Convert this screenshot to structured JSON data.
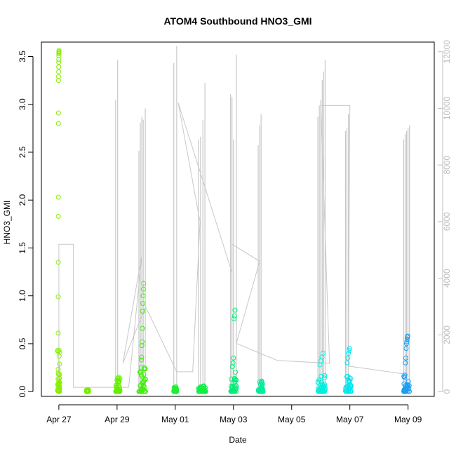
{
  "chart_data": {
    "type": "scatter",
    "title": "ATOM4 Southbound HNO3_GMI",
    "xlabel": "Date",
    "ylabel": "HNO3_GMI",
    "x_ticks": [
      "Apr 27",
      "Apr 29",
      "May 01",
      "May 03",
      "May 05",
      "May 07",
      "May 09"
    ],
    "x_range_days": [
      -0.6,
      12.9
    ],
    "ylim": [
      -0.05,
      3.65
    ],
    "y_ticks": [
      0.0,
      0.5,
      1.0,
      1.5,
      2.0,
      2.5,
      3.0,
      3.5
    ],
    "y_tick_labels": [
      "0.0",
      "0.5",
      "1.0",
      "1.5",
      "2.0",
      "2.5",
      "3.0",
      "3.5"
    ],
    "y2lim": [
      -170,
      12340
    ],
    "y2_ticks": [
      0,
      2000,
      4000,
      6000,
      8000,
      10000,
      12000
    ],
    "y2_tick_labels": [
      "0",
      "2000",
      "4000",
      "6000",
      "8000",
      "10000",
      "12000"
    ],
    "grid": false,
    "colors": {
      "altitude_line": "#c8c8c8",
      "palette": [
        "#88ee00",
        "#55ee00",
        "#22ee33",
        "#00ee66",
        "#00ee99",
        "#00eecc",
        "#00eeee",
        "#00ccee",
        "#0099ee"
      ]
    },
    "flights": [
      {
        "t": [
          -0.05,
          0.03
        ],
        "color": "#88ee00",
        "y_min": 0.0,
        "y_max": 3.56,
        "spikes": [
          0.13,
          0.42,
          0.61,
          0.99,
          1.35,
          1.83,
          2.03,
          2.8,
          2.91,
          3.25,
          3.29,
          3.34,
          3.39,
          3.44,
          3.47,
          3.51,
          3.53,
          3.54,
          3.55,
          3.56
        ]
      },
      {
        "t": [
          0.95,
          1.02
        ],
        "color": "#77ee00",
        "y_min": 0.0,
        "y_max": 0.02,
        "spikes": []
      },
      {
        "t": [
          1.95,
          2.1
        ],
        "color": "#66ee00",
        "y_min": 0.0,
        "y_max": 0.16,
        "spikes": [
          0.12,
          0.14,
          0.15
        ]
      },
      {
        "t": [
          2.75,
          2.98
        ],
        "color": "#44ee11",
        "y_min": 0.0,
        "y_max": 1.13,
        "spikes": [
          0.2,
          0.25,
          0.33,
          0.36,
          0.48,
          0.52,
          0.66,
          0.84,
          0.92,
          1.0,
          1.07,
          1.13
        ]
      },
      {
        "t": [
          3.95,
          4.05
        ],
        "color": "#22ee33",
        "y_min": 0.0,
        "y_max": 0.05,
        "spikes": [
          0.03,
          0.05
        ]
      },
      {
        "t": [
          4.8,
          5.05
        ],
        "color": "#11ee44",
        "y_min": 0.0,
        "y_max": 0.06,
        "spikes": [
          0.05,
          0.06
        ]
      },
      {
        "t": [
          5.9,
          6.12
        ],
        "color": "#00ee77",
        "y_min": 0.0,
        "y_max": 0.85,
        "spikes": [
          0.26,
          0.3,
          0.35,
          0.76,
          0.79,
          0.85
        ]
      },
      {
        "t": [
          6.85,
          7.02
        ],
        "color": "#00ee99",
        "y_min": 0.0,
        "y_max": 0.11,
        "spikes": [
          0.1,
          0.11
        ]
      },
      {
        "t": [
          8.9,
          9.15
        ],
        "color": "#00eedd",
        "y_min": 0.0,
        "y_max": 0.4,
        "spikes": [
          0.28,
          0.32,
          0.36,
          0.4
        ]
      },
      {
        "t": [
          9.85,
          10.05
        ],
        "color": "#00e6ee",
        "y_min": 0.0,
        "y_max": 0.45,
        "spikes": [
          0.3,
          0.35,
          0.4,
          0.43,
          0.45
        ]
      },
      {
        "t": [
          11.85,
          12.05
        ],
        "color": "#1a9ef0",
        "y_min": 0.0,
        "y_max": 0.58,
        "spikes": [
          0.3,
          0.35,
          0.45,
          0.5,
          0.52,
          0.55,
          0.57,
          0.58
        ]
      }
    ],
    "altitude_spikes": [
      {
        "t": 0.0,
        "h": 1500
      },
      {
        "t": 0.02,
        "h": 1000
      },
      {
        "t": 1.95,
        "h": 10300
      },
      {
        "t": 2.02,
        "h": 11700
      },
      {
        "t": 2.75,
        "h": 8500
      },
      {
        "t": 2.8,
        "h": 9500
      },
      {
        "t": 2.85,
        "h": 9700
      },
      {
        "t": 2.9,
        "h": 9600
      },
      {
        "t": 2.97,
        "h": 10000
      },
      {
        "t": 3.95,
        "h": 11600
      },
      {
        "t": 4.05,
        "h": 12200
      },
      {
        "t": 4.8,
        "h": 8900
      },
      {
        "t": 4.87,
        "h": 9000
      },
      {
        "t": 4.95,
        "h": 9600
      },
      {
        "t": 5.02,
        "h": 10900
      },
      {
        "t": 5.9,
        "h": 10500
      },
      {
        "t": 5.95,
        "h": 10400
      },
      {
        "t": 6.0,
        "h": 8900
      },
      {
        "t": 6.1,
        "h": 11900
      },
      {
        "t": 6.85,
        "h": 8700
      },
      {
        "t": 6.9,
        "h": 9400
      },
      {
        "t": 6.95,
        "h": 9800
      },
      {
        "t": 8.9,
        "h": 9700
      },
      {
        "t": 8.95,
        "h": 10100
      },
      {
        "t": 9.0,
        "h": 10300
      },
      {
        "t": 9.05,
        "h": 11000
      },
      {
        "t": 9.1,
        "h": 11300
      },
      {
        "t": 9.15,
        "h": 11700
      },
      {
        "t": 9.85,
        "h": 9200
      },
      {
        "t": 9.9,
        "h": 9300
      },
      {
        "t": 9.95,
        "h": 9800
      },
      {
        "t": 11.85,
        "h": 8900
      },
      {
        "t": 11.9,
        "h": 9100
      },
      {
        "t": 11.95,
        "h": 9200
      },
      {
        "t": 12.0,
        "h": 9300
      },
      {
        "t": 12.05,
        "h": 9400
      }
    ],
    "altitude_track": [
      {
        "t": 0.0,
        "h": 150
      },
      {
        "t": 0.0,
        "h": 5200
      },
      {
        "t": 0.5,
        "h": 5200
      },
      {
        "t": 0.5,
        "h": 150
      },
      {
        "t": 1.0,
        "h": 150
      },
      {
        "t": 1.95,
        "h": 150
      },
      {
        "t": 2.4,
        "h": 150
      },
      {
        "t": 2.85,
        "h": 4800
      },
      {
        "t": 2.2,
        "h": 1000
      },
      {
        "t": 2.98,
        "h": 3000
      },
      {
        "t": 4.05,
        "h": 700
      },
      {
        "t": 4.6,
        "h": 700
      },
      {
        "t": 4.85,
        "h": 6000
      },
      {
        "t": 4.1,
        "h": 10200
      },
      {
        "t": 5.95,
        "h": 4200
      },
      {
        "t": 5.95,
        "h": 5200
      },
      {
        "t": 6.9,
        "h": 4600
      },
      {
        "t": 6.1,
        "h": 1700
      },
      {
        "t": 7.5,
        "h": 1100
      },
      {
        "t": 9.3,
        "h": 1000
      },
      {
        "t": 9.0,
        "h": 10100
      },
      {
        "t": 10.0,
        "h": 10100
      },
      {
        "t": 9.95,
        "h": 900
      },
      {
        "t": 12.0,
        "h": 600
      }
    ]
  }
}
